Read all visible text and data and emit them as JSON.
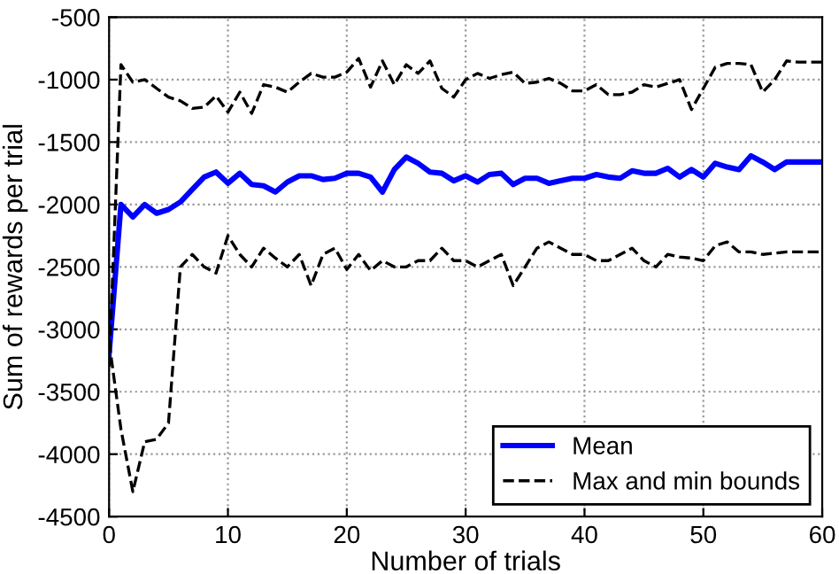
{
  "chart_data": {
    "type": "line",
    "xlabel": "Number of trials",
    "ylabel": "Sum of rewards per trial",
    "x": [
      0,
      1,
      2,
      3,
      4,
      5,
      6,
      7,
      8,
      9,
      10,
      11,
      12,
      13,
      14,
      15,
      16,
      17,
      18,
      19,
      20,
      21,
      22,
      23,
      24,
      25,
      26,
      27,
      28,
      29,
      30,
      31,
      32,
      33,
      34,
      35,
      36,
      37,
      38,
      39,
      40,
      41,
      42,
      43,
      44,
      45,
      46,
      47,
      48,
      49,
      50,
      51,
      52,
      53,
      54,
      55,
      56,
      57,
      58,
      59,
      60
    ],
    "series": [
      {
        "name": "Mean",
        "color": "#0000ff",
        "line_style": "solid",
        "values": [
          -3200,
          -2000,
          -2100,
          -2000,
          -2070,
          -2040,
          -1980,
          -1880,
          -1780,
          -1740,
          -1830,
          -1750,
          -1840,
          -1850,
          -1900,
          -1820,
          -1770,
          -1770,
          -1800,
          -1790,
          -1750,
          -1750,
          -1780,
          -1900,
          -1720,
          -1620,
          -1670,
          -1740,
          -1750,
          -1810,
          -1770,
          -1820,
          -1760,
          -1750,
          -1840,
          -1790,
          -1790,
          -1830,
          -1810,
          -1790,
          -1790,
          -1760,
          -1780,
          -1790,
          -1730,
          -1750,
          -1750,
          -1710,
          -1780,
          -1720,
          -1780,
          -1670,
          -1700,
          -1720,
          -1610,
          -1660,
          -1720,
          -1660,
          -1660,
          -1660,
          -1660
        ]
      },
      {
        "name": "Max and min bounds",
        "color": "#000000",
        "line_style": "dashed",
        "values": [
          -3300,
          -880,
          -1020,
          -1000,
          -1070,
          -1140,
          -1170,
          -1230,
          -1220,
          -1130,
          -1260,
          -1100,
          -1270,
          -1040,
          -1060,
          -1100,
          -1020,
          -950,
          -980,
          -980,
          -940,
          -830,
          -1060,
          -850,
          -1040,
          -880,
          -950,
          -850,
          -1070,
          -1140,
          -1000,
          -950,
          -990,
          -960,
          -940,
          -1030,
          -1020,
          -990,
          -1030,
          -1090,
          -1090,
          -1040,
          -1120,
          -1120,
          -1100,
          -1040,
          -1060,
          -1030,
          -1000,
          -1240,
          -1070,
          -900,
          -870,
          -870,
          -880,
          -1100,
          -1000,
          -850,
          -860,
          -860,
          -860
        ]
      },
      {
        "color": "#000000",
        "line_style": "dashed",
        "values": [
          -3100,
          -3800,
          -4300,
          -3900,
          -3880,
          -3750,
          -2500,
          -2400,
          -2500,
          -2550,
          -2250,
          -2400,
          -2500,
          -2350,
          -2430,
          -2500,
          -2400,
          -2650,
          -2400,
          -2350,
          -2520,
          -2400,
          -2530,
          -2450,
          -2500,
          -2500,
          -2450,
          -2450,
          -2350,
          -2450,
          -2450,
          -2500,
          -2450,
          -2400,
          -2650,
          -2500,
          -2350,
          -2300,
          -2350,
          -2400,
          -2400,
          -2450,
          -2450,
          -2400,
          -2350,
          -2450,
          -2500,
          -2400,
          -2420,
          -2430,
          -2450,
          -2330,
          -2300,
          -2380,
          -2380,
          -2400,
          -2390,
          -2380,
          -2380,
          -2380,
          -2380
        ]
      }
    ],
    "xlim": [
      0,
      60
    ],
    "xticks": [
      0,
      10,
      20,
      30,
      40,
      50,
      60
    ],
    "ylim": [
      -4500,
      -500
    ],
    "yticks": [
      -4500,
      -4000,
      -3500,
      -3000,
      -2500,
      -2000,
      -1500,
      -1000,
      -500
    ],
    "grid": true,
    "legend": "bottom right",
    "marker": "none"
  }
}
